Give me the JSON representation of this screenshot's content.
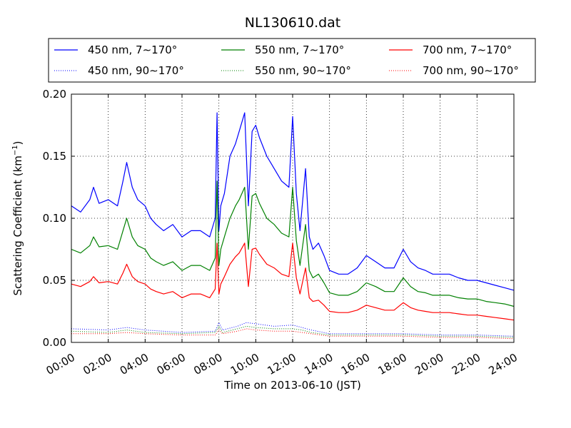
{
  "chart_data": {
    "type": "line",
    "title": "NL130610.dat",
    "xlabel": "Time on 2013-06-10 (JST)",
    "ylabel": "Scattering Coefficient (km",
    "ylabel_sup": "−1",
    "ylabel_close": ")",
    "xlim": [
      0,
      24
    ],
    "ylim": [
      0,
      0.2
    ],
    "grid": true,
    "legend_position": "top",
    "xticks": [
      0,
      2,
      4,
      6,
      8,
      10,
      12,
      14,
      16,
      18,
      20,
      22,
      24
    ],
    "xtick_labels": [
      "00:00",
      "02:00",
      "04:00",
      "06:00",
      "08:00",
      "10:00",
      "12:00",
      "14:00",
      "16:00",
      "18:00",
      "20:00",
      "22:00",
      "24:00"
    ],
    "yticks": [
      0,
      0.05,
      0.1,
      0.15,
      0.2
    ],
    "ytick_labels": [
      "0.00",
      "0.05",
      "0.10",
      "0.15",
      "0.20"
    ],
    "series": [
      {
        "name": "450 nm, 7∼170°",
        "color": "#0000ff",
        "style": "solid",
        "x": [
          0,
          0.5,
          1,
          1.2,
          1.5,
          2,
          2.5,
          2.8,
          3,
          3.3,
          3.6,
          4,
          4.3,
          4.6,
          5,
          5.5,
          6,
          6.5,
          7,
          7.5,
          7.8,
          7.9,
          8.0,
          8.1,
          8.3,
          8.6,
          8.9,
          9.1,
          9.4,
          9.6,
          9.8,
          10.0,
          10.2,
          10.6,
          11,
          11.4,
          11.8,
          12.0,
          12.2,
          12.4,
          12.7,
          12.9,
          13.1,
          13.4,
          13.7,
          14,
          14.5,
          15,
          15.5,
          16,
          16.5,
          17,
          17.5,
          18,
          18.4,
          18.8,
          19.2,
          19.6,
          20,
          20.5,
          21,
          21.5,
          22,
          22.5,
          23,
          23.5,
          24
        ],
        "y": [
          0.11,
          0.105,
          0.115,
          0.125,
          0.112,
          0.115,
          0.11,
          0.13,
          0.145,
          0.125,
          0.115,
          0.11,
          0.1,
          0.095,
          0.09,
          0.095,
          0.085,
          0.09,
          0.09,
          0.085,
          0.1,
          0.185,
          0.09,
          0.11,
          0.12,
          0.15,
          0.16,
          0.17,
          0.185,
          0.11,
          0.17,
          0.175,
          0.165,
          0.15,
          0.14,
          0.13,
          0.125,
          0.182,
          0.12,
          0.09,
          0.14,
          0.085,
          0.075,
          0.08,
          0.07,
          0.058,
          0.055,
          0.055,
          0.06,
          0.07,
          0.065,
          0.06,
          0.06,
          0.075,
          0.065,
          0.06,
          0.058,
          0.055,
          0.055,
          0.055,
          0.052,
          0.05,
          0.05,
          0.048,
          0.046,
          0.044,
          0.042
        ]
      },
      {
        "name": "550 nm, 7∼170°",
        "color": "#008000",
        "style": "solid",
        "x": [
          0,
          0.5,
          1,
          1.2,
          1.5,
          2,
          2.5,
          2.8,
          3,
          3.3,
          3.6,
          4,
          4.3,
          4.6,
          5,
          5.5,
          6,
          6.5,
          7,
          7.5,
          7.8,
          7.9,
          8.0,
          8.1,
          8.3,
          8.6,
          8.9,
          9.1,
          9.4,
          9.6,
          9.8,
          10.0,
          10.2,
          10.6,
          11,
          11.4,
          11.8,
          12.0,
          12.2,
          12.4,
          12.7,
          12.9,
          13.1,
          13.4,
          13.7,
          14,
          14.5,
          15,
          15.5,
          16,
          16.5,
          17,
          17.5,
          18,
          18.4,
          18.8,
          19.2,
          19.6,
          20,
          20.5,
          21,
          21.5,
          22,
          22.5,
          23,
          23.5,
          24
        ],
        "y": [
          0.075,
          0.072,
          0.078,
          0.085,
          0.077,
          0.078,
          0.075,
          0.09,
          0.1,
          0.085,
          0.078,
          0.075,
          0.068,
          0.065,
          0.062,
          0.065,
          0.058,
          0.062,
          0.062,
          0.058,
          0.068,
          0.13,
          0.062,
          0.075,
          0.085,
          0.1,
          0.11,
          0.115,
          0.125,
          0.075,
          0.118,
          0.12,
          0.112,
          0.1,
          0.095,
          0.088,
          0.085,
          0.125,
          0.082,
          0.062,
          0.095,
          0.058,
          0.052,
          0.055,
          0.048,
          0.04,
          0.038,
          0.038,
          0.041,
          0.048,
          0.045,
          0.041,
          0.041,
          0.052,
          0.045,
          0.041,
          0.04,
          0.038,
          0.038,
          0.038,
          0.036,
          0.035,
          0.035,
          0.033,
          0.032,
          0.031,
          0.029
        ]
      },
      {
        "name": "700 nm, 7∼170°",
        "color": "#ff0000",
        "style": "solid",
        "x": [
          0,
          0.5,
          1,
          1.2,
          1.5,
          2,
          2.5,
          2.8,
          3,
          3.3,
          3.6,
          4,
          4.3,
          4.6,
          5,
          5.5,
          6,
          6.5,
          7,
          7.5,
          7.8,
          7.9,
          8.0,
          8.1,
          8.3,
          8.6,
          8.9,
          9.1,
          9.4,
          9.6,
          9.8,
          10.0,
          10.2,
          10.6,
          11,
          11.4,
          11.8,
          12.0,
          12.2,
          12.4,
          12.7,
          12.9,
          13.1,
          13.4,
          13.7,
          14,
          14.5,
          15,
          15.5,
          16,
          16.5,
          17,
          17.5,
          18,
          18.4,
          18.8,
          19.2,
          19.6,
          20,
          20.5,
          21,
          21.5,
          22,
          22.5,
          23,
          23.5,
          24
        ],
        "y": [
          0.047,
          0.045,
          0.049,
          0.053,
          0.048,
          0.049,
          0.047,
          0.056,
          0.063,
          0.053,
          0.049,
          0.047,
          0.043,
          0.041,
          0.039,
          0.041,
          0.036,
          0.039,
          0.039,
          0.036,
          0.043,
          0.08,
          0.039,
          0.047,
          0.053,
          0.063,
          0.069,
          0.072,
          0.08,
          0.045,
          0.075,
          0.076,
          0.071,
          0.063,
          0.06,
          0.055,
          0.053,
          0.08,
          0.052,
          0.039,
          0.06,
          0.036,
          0.033,
          0.034,
          0.03,
          0.025,
          0.024,
          0.024,
          0.026,
          0.03,
          0.028,
          0.026,
          0.026,
          0.032,
          0.028,
          0.026,
          0.025,
          0.024,
          0.024,
          0.024,
          0.023,
          0.022,
          0.022,
          0.021,
          0.02,
          0.019,
          0.018
        ]
      },
      {
        "name": "450 nm, 90∼170°",
        "color": "#0000ff",
        "style": "dotted",
        "x": [
          0,
          2,
          3,
          4,
          6,
          7.8,
          8.0,
          8.2,
          9,
          9.5,
          10,
          11,
          12,
          12.5,
          13,
          14,
          16,
          18,
          20,
          22,
          24
        ],
        "y": [
          0.011,
          0.01,
          0.012,
          0.01,
          0.008,
          0.009,
          0.016,
          0.01,
          0.013,
          0.016,
          0.015,
          0.013,
          0.014,
          0.012,
          0.01,
          0.007,
          0.007,
          0.007,
          0.006,
          0.006,
          0.005
        ]
      },
      {
        "name": "550 nm, 90∼170°",
        "color": "#008000",
        "style": "dotted",
        "x": [
          0,
          2,
          3,
          4,
          6,
          7.8,
          8.0,
          8.2,
          9,
          9.5,
          10,
          11,
          12,
          12.5,
          13,
          14,
          16,
          18,
          20,
          22,
          24
        ],
        "y": [
          0.009,
          0.008,
          0.01,
          0.008,
          0.007,
          0.008,
          0.013,
          0.008,
          0.011,
          0.013,
          0.012,
          0.011,
          0.011,
          0.01,
          0.008,
          0.006,
          0.006,
          0.006,
          0.005,
          0.005,
          0.004
        ]
      },
      {
        "name": "700 nm, 90∼170°",
        "color": "#ff0000",
        "style": "dotted",
        "x": [
          0,
          2,
          3,
          4,
          6,
          7.8,
          8.0,
          8.2,
          9,
          9.5,
          10,
          11,
          12,
          12.5,
          13,
          14,
          16,
          18,
          20,
          22,
          24
        ],
        "y": [
          0.007,
          0.007,
          0.008,
          0.007,
          0.006,
          0.006,
          0.01,
          0.007,
          0.009,
          0.011,
          0.01,
          0.009,
          0.009,
          0.008,
          0.007,
          0.005,
          0.005,
          0.005,
          0.004,
          0.004,
          0.003
        ]
      }
    ]
  }
}
